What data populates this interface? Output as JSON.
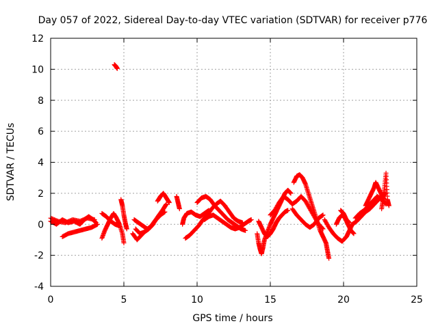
{
  "chart_data": {
    "type": "scatter",
    "title": "Day 057 of 2022, Sidereal Day-to-day VTEC variation (SDTVAR) for receiver p776",
    "xlabel": "GPS time / hours",
    "ylabel": "SDTVAR / TECUs",
    "xlim": [
      0,
      25
    ],
    "ylim": [
      -4,
      12
    ],
    "xticks": [
      0,
      5,
      10,
      15,
      20,
      25
    ],
    "yticks": [
      -4,
      -2,
      0,
      2,
      4,
      6,
      8,
      10,
      12
    ],
    "grid": true,
    "marker": "+",
    "series": [
      {
        "name": "SDTVAR",
        "color": "#ff0000",
        "tracks": [
          [
            [
              0.0,
              0.2
            ],
            [
              0.4,
              0.0
            ],
            [
              0.8,
              0.3
            ],
            [
              1.2,
              0.1
            ],
            [
              1.6,
              0.2
            ],
            [
              2.0,
              0.0
            ],
            [
              2.3,
              0.3
            ],
            [
              2.6,
              0.5
            ],
            [
              2.9,
              0.3
            ],
            [
              3.1,
              0.1
            ]
          ],
          [
            [
              0.0,
              0.4
            ],
            [
              0.5,
              0.2
            ],
            [
              1.0,
              0.1
            ],
            [
              1.5,
              0.3
            ],
            [
              2.0,
              0.2
            ],
            [
              2.5,
              0.4
            ],
            [
              3.0,
              0.3
            ]
          ],
          [
            [
              0.8,
              -0.8
            ],
            [
              1.2,
              -0.6
            ],
            [
              1.6,
              -0.5
            ],
            [
              2.0,
              -0.4
            ],
            [
              2.4,
              -0.3
            ],
            [
              2.8,
              -0.2
            ],
            [
              3.2,
              0.0
            ]
          ],
          [
            [
              3.5,
              -0.9
            ],
            [
              3.7,
              -0.4
            ],
            [
              3.9,
              0.0
            ],
            [
              4.1,
              0.4
            ],
            [
              4.3,
              0.7
            ],
            [
              4.5,
              0.4
            ],
            [
              4.7,
              0.0
            ],
            [
              4.9,
              -0.6
            ],
            [
              5.0,
              -1.2
            ]
          ],
          [
            [
              3.5,
              0.7
            ],
            [
              3.8,
              0.5
            ],
            [
              4.1,
              0.2
            ],
            [
              4.4,
              0.0
            ],
            [
              4.7,
              -0.1
            ]
          ],
          [
            [
              4.8,
              1.6
            ],
            [
              4.9,
              1.2
            ],
            [
              5.0,
              0.6
            ],
            [
              5.1,
              0.1
            ],
            [
              5.2,
              -0.3
            ]
          ],
          [
            [
              4.35,
              10.3
            ],
            [
              4.45,
              10.2
            ],
            [
              4.55,
              10.05
            ]
          ],
          [
            [
              5.6,
              -0.6
            ],
            [
              5.9,
              -1.0
            ],
            [
              6.2,
              -0.7
            ],
            [
              6.5,
              -0.4
            ],
            [
              6.8,
              -0.2
            ],
            [
              7.1,
              0.2
            ],
            [
              7.4,
              0.6
            ],
            [
              7.7,
              1.0
            ],
            [
              7.9,
              1.3
            ]
          ],
          [
            [
              5.7,
              0.3
            ],
            [
              6.0,
              0.1
            ],
            [
              6.3,
              -0.1
            ],
            [
              6.6,
              -0.3
            ],
            [
              6.9,
              -0.1
            ],
            [
              7.2,
              0.3
            ],
            [
              7.5,
              0.6
            ],
            [
              7.8,
              0.8
            ]
          ],
          [
            [
              5.8,
              -0.3
            ],
            [
              6.1,
              -0.6
            ],
            [
              6.4,
              -0.5
            ],
            [
              6.7,
              -0.3
            ],
            [
              7.0,
              0.0
            ]
          ],
          [
            [
              7.3,
              1.5
            ],
            [
              7.5,
              1.8
            ],
            [
              7.7,
              2.0
            ],
            [
              7.9,
              1.7
            ],
            [
              8.1,
              1.4
            ]
          ],
          [
            [
              8.6,
              1.8
            ],
            [
              8.7,
              1.4
            ],
            [
              8.8,
              1.0
            ]
          ],
          [
            [
              9.0,
              0.0
            ],
            [
              9.1,
              0.4
            ],
            [
              9.3,
              0.7
            ],
            [
              9.6,
              0.8
            ],
            [
              9.9,
              0.6
            ],
            [
              10.2,
              0.5
            ],
            [
              10.5,
              0.7
            ],
            [
              10.8,
              0.9
            ]
          ],
          [
            [
              9.2,
              -0.9
            ],
            [
              9.5,
              -0.7
            ],
            [
              9.8,
              -0.4
            ],
            [
              10.1,
              -0.1
            ],
            [
              10.4,
              0.3
            ],
            [
              10.7,
              0.6
            ],
            [
              11.0,
              1.0
            ],
            [
              11.3,
              1.3
            ],
            [
              11.6,
              1.5
            ],
            [
              11.9,
              1.2
            ],
            [
              12.2,
              0.8
            ],
            [
              12.5,
              0.4
            ],
            [
              12.8,
              0.2
            ],
            [
              13.1,
              0.1
            ]
          ],
          [
            [
              10.0,
              1.4
            ],
            [
              10.3,
              1.7
            ],
            [
              10.6,
              1.8
            ],
            [
              10.9,
              1.6
            ],
            [
              11.2,
              1.2
            ],
            [
              11.5,
              0.9
            ],
            [
              11.8,
              0.6
            ],
            [
              12.1,
              0.3
            ],
            [
              12.4,
              0.1
            ],
            [
              12.7,
              -0.1
            ],
            [
              13.0,
              -0.3
            ],
            [
              13.3,
              -0.4
            ]
          ],
          [
            [
              10.5,
              0.3
            ],
            [
              10.8,
              0.5
            ],
            [
              11.1,
              0.6
            ],
            [
              11.4,
              0.4
            ],
            [
              11.7,
              0.2
            ],
            [
              12.0,
              0.0
            ],
            [
              12.3,
              -0.2
            ],
            [
              12.6,
              -0.3
            ],
            [
              12.9,
              -0.2
            ],
            [
              13.2,
              0.0
            ],
            [
              13.5,
              0.2
            ],
            [
              13.7,
              0.3
            ]
          ],
          [
            [
              14.1,
              -0.6
            ],
            [
              14.2,
              -1.2
            ],
            [
              14.3,
              -1.6
            ],
            [
              14.4,
              -1.9
            ],
            [
              14.5,
              -1.5
            ],
            [
              14.6,
              -1.0
            ],
            [
              14.8,
              -0.5
            ],
            [
              15.0,
              0.0
            ],
            [
              15.2,
              0.4
            ],
            [
              15.4,
              0.8
            ],
            [
              15.6,
              1.2
            ],
            [
              15.8,
              1.6
            ],
            [
              16.0,
              2.0
            ],
            [
              16.2,
              2.2
            ],
            [
              16.4,
              2.0
            ]
          ],
          [
            [
              14.2,
              0.2
            ],
            [
              14.4,
              -0.2
            ],
            [
              14.6,
              -0.6
            ],
            [
              14.8,
              -0.8
            ],
            [
              15.0,
              -0.6
            ],
            [
              15.2,
              -0.3
            ],
            [
              15.4,
              0.1
            ],
            [
              15.6,
              0.4
            ],
            [
              15.8,
              0.6
            ],
            [
              16.0,
              0.8
            ],
            [
              16.2,
              0.9
            ]
          ],
          [
            [
              15.0,
              0.6
            ],
            [
              15.3,
              0.9
            ],
            [
              15.6,
              1.4
            ],
            [
              15.9,
              1.8
            ],
            [
              16.2,
              1.6
            ],
            [
              16.5,
              1.3
            ],
            [
              16.8,
              1.5
            ],
            [
              17.1,
              1.8
            ],
            [
              17.4,
              1.5
            ],
            [
              17.7,
              1.0
            ],
            [
              18.0,
              0.5
            ],
            [
              18.3,
              0.0
            ],
            [
              18.6,
              -0.3
            ]
          ],
          [
            [
              16.6,
              2.7
            ],
            [
              16.8,
              3.1
            ],
            [
              17.0,
              3.2
            ],
            [
              17.2,
              3.0
            ],
            [
              17.4,
              2.6
            ],
            [
              17.6,
              2.0
            ],
            [
              17.8,
              1.4
            ],
            [
              18.0,
              0.8
            ],
            [
              18.2,
              0.2
            ],
            [
              18.4,
              -0.4
            ],
            [
              18.6,
              -0.8
            ],
            [
              18.8,
              -1.2
            ],
            [
              18.9,
              -1.7
            ],
            [
              19.0,
              -2.2
            ]
          ],
          [
            [
              16.5,
              1.0
            ],
            [
              16.8,
              0.6
            ],
            [
              17.1,
              0.3
            ],
            [
              17.4,
              0.0
            ],
            [
              17.7,
              -0.2
            ],
            [
              18.0,
              0.0
            ],
            [
              18.3,
              0.4
            ],
            [
              18.6,
              0.6
            ]
          ],
          [
            [
              18.7,
              0.3
            ],
            [
              19.0,
              -0.2
            ],
            [
              19.3,
              -0.6
            ],
            [
              19.6,
              -0.9
            ],
            [
              19.9,
              -1.1
            ],
            [
              20.2,
              -0.8
            ],
            [
              20.4,
              -0.4
            ],
            [
              20.6,
              0.0
            ]
          ],
          [
            [
              19.5,
              0.0
            ],
            [
              19.7,
              0.4
            ],
            [
              19.9,
              0.6
            ],
            [
              20.1,
              0.4
            ],
            [
              20.3,
              0.0
            ],
            [
              20.5,
              -0.4
            ],
            [
              20.7,
              -0.6
            ]
          ],
          [
            [
              19.8,
              0.9
            ],
            [
              20.0,
              0.7
            ],
            [
              20.2,
              0.3
            ],
            [
              20.4,
              0.1
            ]
          ],
          [
            [
              20.8,
              0.4
            ],
            [
              21.1,
              0.7
            ],
            [
              21.4,
              0.9
            ],
            [
              21.7,
              1.2
            ],
            [
              22.0,
              1.5
            ],
            [
              22.3,
              1.8
            ],
            [
              22.6,
              1.6
            ],
            [
              22.9,
              1.3
            ]
          ],
          [
            [
              20.6,
              0.0
            ],
            [
              20.9,
              0.2
            ],
            [
              21.2,
              0.5
            ],
            [
              21.5,
              0.8
            ],
            [
              21.8,
              1.0
            ],
            [
              22.1,
              1.3
            ],
            [
              22.4,
              1.6
            ],
            [
              22.7,
              1.9
            ],
            [
              22.9,
              2.0
            ]
          ],
          [
            [
              21.5,
              1.2
            ],
            [
              21.7,
              1.6
            ],
            [
              21.9,
              2.0
            ],
            [
              22.1,
              2.4
            ],
            [
              22.2,
              2.7
            ],
            [
              22.4,
              2.3
            ],
            [
              22.6,
              1.9
            ],
            [
              22.8,
              1.6
            ]
          ],
          [
            [
              22.6,
              1.0
            ],
            [
              22.7,
              1.6
            ],
            [
              22.8,
              2.4
            ],
            [
              22.9,
              3.3
            ],
            [
              23.0,
              1.6
            ],
            [
              23.1,
              1.2
            ]
          ]
        ]
      }
    ]
  }
}
